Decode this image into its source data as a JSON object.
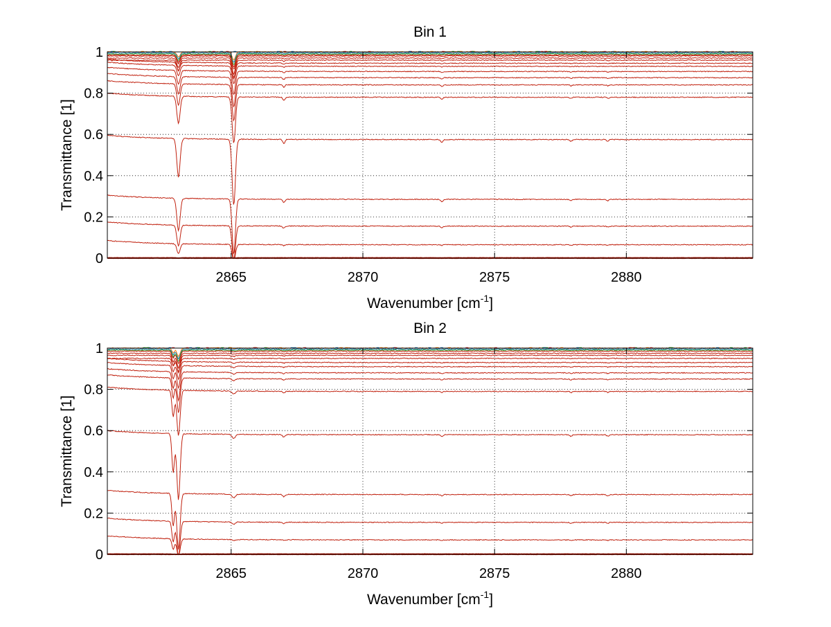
{
  "chart_data": [
    {
      "type": "line",
      "title": "Bin 1",
      "xlabel": "Wavenumber [cm",
      "xlabel_sup": "-1",
      "xlabel_suffix": "]",
      "ylabel": "Transmittance [1]",
      "xlim": [
        2860.3,
        2884.8
      ],
      "ylim": [
        0,
        1
      ],
      "xticks": [
        2865,
        2870,
        2875,
        2880
      ],
      "yticks": [
        0,
        0.2,
        0.4,
        0.6,
        0.8,
        1
      ],
      "grid": true,
      "x_range_of_series": [
        2860.3,
        2884.8
      ],
      "absorption_lines": [
        {
          "x": 2863.0,
          "width": 0.09
        },
        {
          "x": 2865.1,
          "width": 0.09
        },
        {
          "x": 2867.0,
          "width": 0.06
        },
        {
          "x": 2873.0,
          "width": 0.06
        },
        {
          "x": 2877.9,
          "width": 0.06
        },
        {
          "x": 2879.3,
          "width": 0.06
        }
      ],
      "series_baselines": [
        1.0,
        0.995,
        0.99,
        0.985,
        0.98,
        0.97,
        0.96,
        0.945,
        0.93,
        0.905,
        0.875,
        0.84,
        0.78,
        0.575,
        0.285,
        0.155,
        0.065,
        0.003,
        0.0
      ],
      "series_color": "#c0200e",
      "highlight_colors": [
        "#ff7f0e",
        "#1f77b4",
        "#2ca02c",
        "#d62728"
      ]
    },
    {
      "type": "line",
      "title": "Bin 2",
      "xlabel": "Wavenumber [cm",
      "xlabel_sup": "-1",
      "xlabel_suffix": "]",
      "ylabel": "Transmittance [1]",
      "xlim": [
        2860.3,
        2884.8
      ],
      "ylim": [
        0,
        1
      ],
      "xticks": [
        2865,
        2870,
        2875,
        2880
      ],
      "yticks": [
        0,
        0.2,
        0.4,
        0.6,
        0.8,
        1
      ],
      "grid": true,
      "absorption_lines": [
        {
          "x": 2862.8,
          "width": 0.07
        },
        {
          "x": 2863.0,
          "width": 0.09
        },
        {
          "x": 2865.1,
          "width": 0.09
        },
        {
          "x": 2867.0,
          "width": 0.06
        },
        {
          "x": 2873.0,
          "width": 0.06
        },
        {
          "x": 2877.9,
          "width": 0.06
        },
        {
          "x": 2879.3,
          "width": 0.06
        }
      ],
      "series_baselines": [
        1.0,
        0.995,
        0.99,
        0.985,
        0.975,
        0.965,
        0.95,
        0.93,
        0.91,
        0.88,
        0.85,
        0.79,
        0.58,
        0.29,
        0.155,
        0.07,
        0.003,
        0.0
      ],
      "series_color": "#c0200e",
      "highlight_colors": [
        "#ff7f0e",
        "#1f77b4",
        "#2ca02c",
        "#d62728"
      ]
    }
  ]
}
